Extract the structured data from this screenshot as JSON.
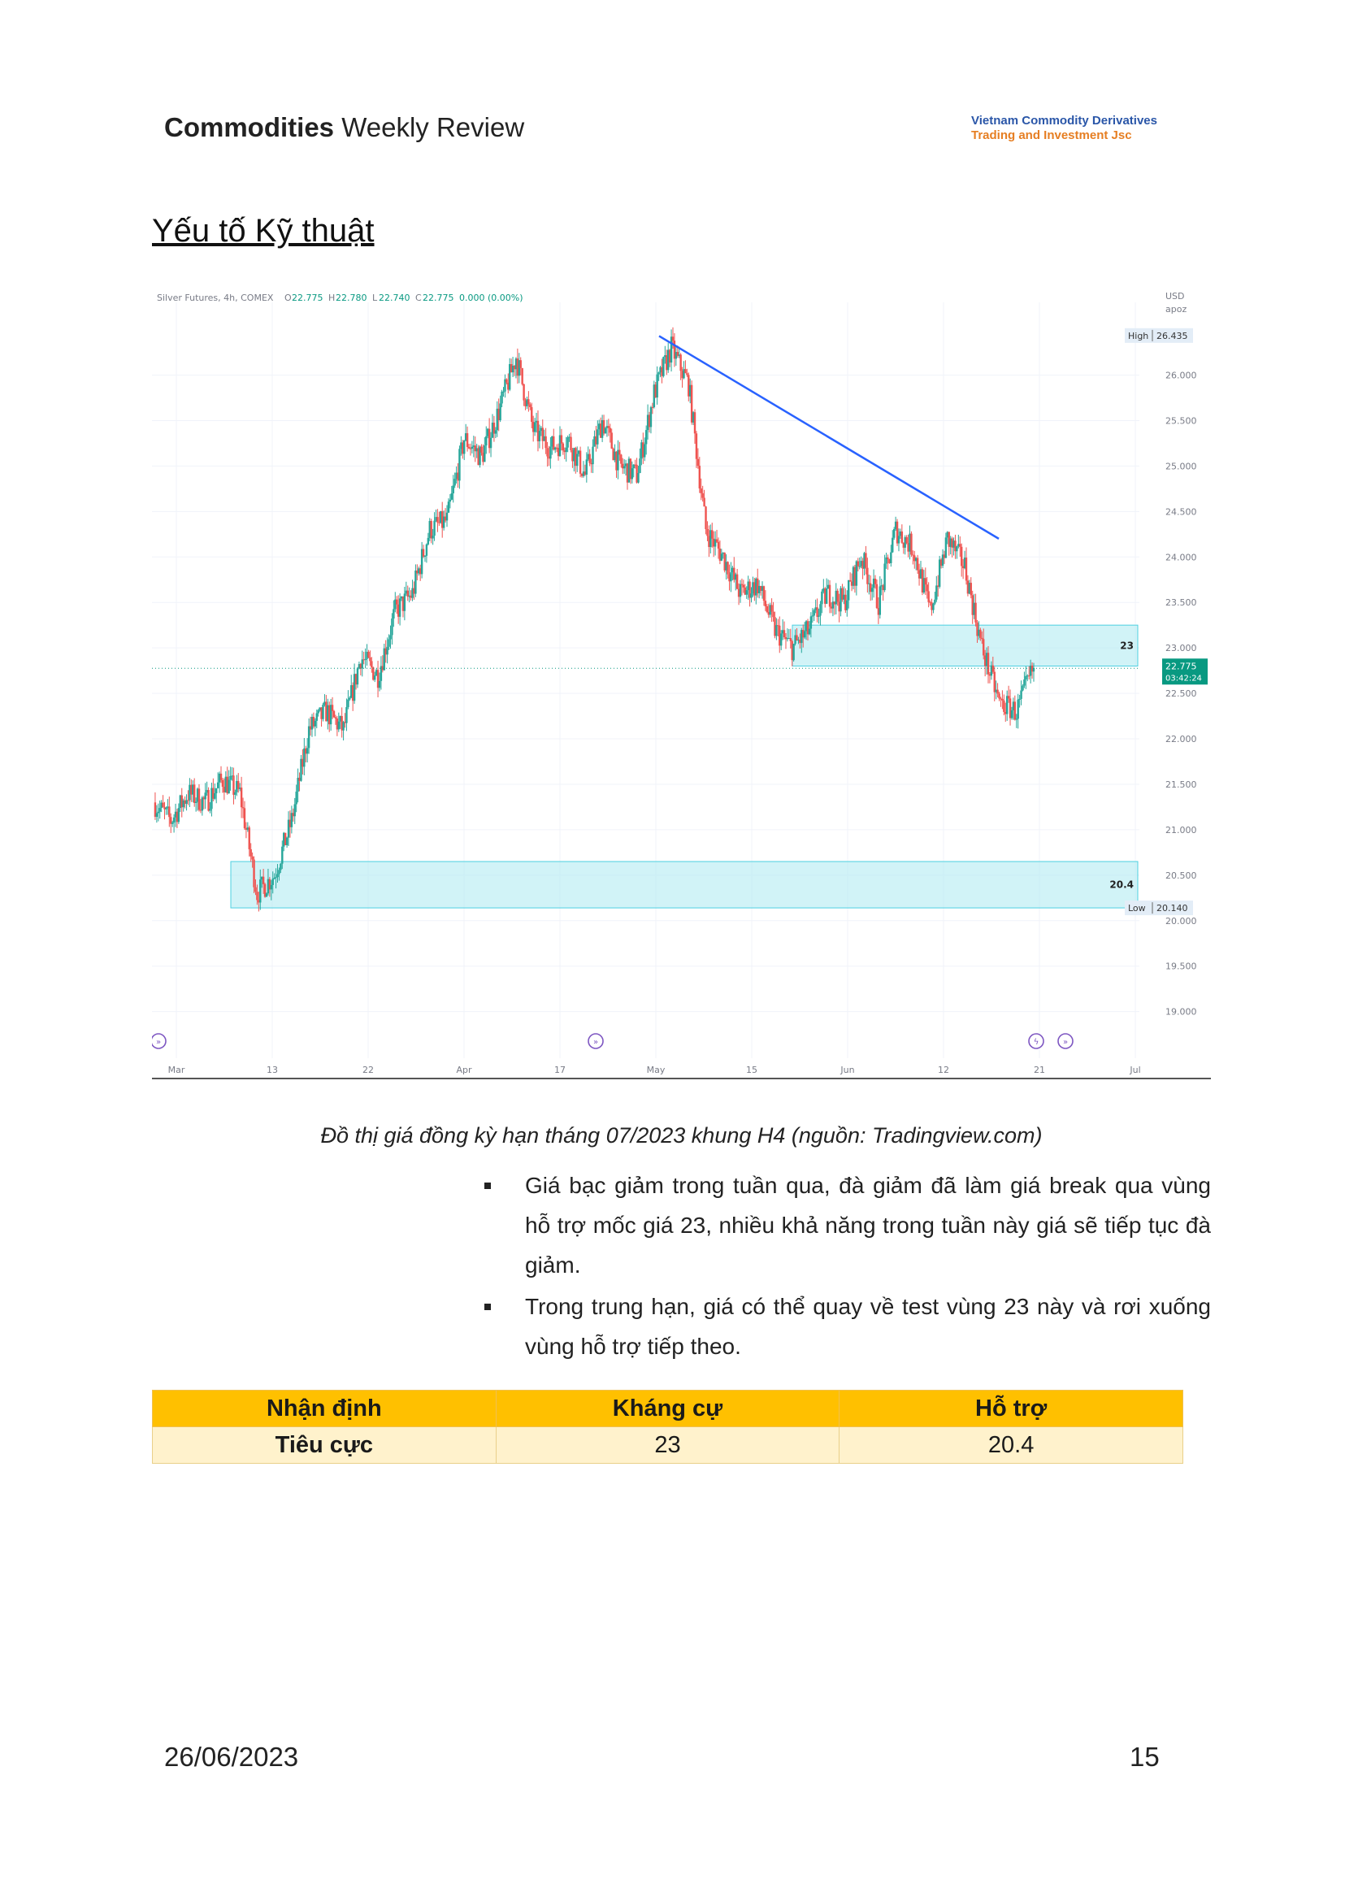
{
  "header": {
    "title_bold": "Commodities",
    "title_rest": " Weekly Review",
    "brand_line1": "Vietnam Commodity Derivatives",
    "brand_line2": "Trading and Investment Jsc"
  },
  "section_title": "Yếu tố Kỹ thuật",
  "chart_data": {
    "type": "candlestick",
    "symbol_info": "Silver Futures, 4h, COMEX",
    "ohlc_readout": {
      "O": "22.775",
      "H": "22.780",
      "L": "22.740",
      "C": "22.775",
      "change": "0.000 (0.00%)"
    },
    "currency": "USD",
    "account": "apoz",
    "y_ticks": [
      "26.000",
      "25.500",
      "25.000",
      "24.500",
      "24.000",
      "23.500",
      "23.000",
      "22.500",
      "22.000",
      "21.500",
      "21.000",
      "20.500",
      "20.000",
      "19.500",
      "19.000"
    ],
    "x_ticks": [
      "Mar",
      "13",
      "22",
      "Apr",
      "17",
      "May",
      "15",
      "Jun",
      "12",
      "21",
      "Jul"
    ],
    "ylim": [
      18.8,
      26.8
    ],
    "high_label": "High",
    "high_value": "26.435",
    "low_label": "Low",
    "low_value": "20.140",
    "last_price": "22.775",
    "countdown": "03:42:24",
    "resistance_zone": {
      "label": "23",
      "from": 22.8,
      "to": 23.25
    },
    "support_zone": {
      "label": "20.4",
      "from": 20.14,
      "to": 20.65
    },
    "trendline": {
      "from": {
        "date": "May 5",
        "price": 26.43
      },
      "to": {
        "date": "Jun 21",
        "price": 24.2
      }
    },
    "close_path": [
      21.3,
      21.1,
      21.4,
      21.3,
      21.55,
      21.4,
      20.3,
      20.5,
      21.1,
      22.1,
      22.3,
      22.1,
      22.9,
      22.7,
      23.4,
      23.6,
      24.3,
      24.4,
      25.3,
      25.1,
      25.6,
      26.2,
      25.4,
      25.2,
      25.3,
      24.9,
      25.5,
      25.0,
      24.9,
      25.8,
      26.3,
      25.9,
      24.3,
      24.0,
      23.6,
      23.7,
      23.2,
      23.0,
      23.2,
      23.6,
      23.5,
      24.0,
      23.5,
      24.3,
      24.1,
      23.4,
      24.2,
      23.9,
      23.0,
      22.4,
      22.3,
      22.78
    ]
  },
  "caption": "Đồ thị giá đồng kỳ hạn tháng 07/2023 khung H4 (nguồn: Tradingview.com)",
  "bullets": [
    "Giá bạc giảm trong tuần qua, đà giảm đã làm giá break qua vùng hỗ trợ mốc giá 23, nhiều khả năng trong tuần này giá sẽ tiếp tục đà giảm.",
    "Trong trung hạn, giá có thể quay về test vùng 23 này và rơi xuống vùng hỗ trợ tiếp theo."
  ],
  "table": {
    "headers": [
      "Nhận định",
      "Kháng cự",
      "Hỗ trợ"
    ],
    "row": [
      "Tiêu cực",
      "23",
      "20.4"
    ]
  },
  "footer": {
    "date": "26/06/2023",
    "page": "15"
  },
  "colors": {
    "up": "#26a69a",
    "down": "#ef5350",
    "trend": "#2962ff",
    "zone_fill": "#b2ebf2",
    "zone_stroke": "#4dd0e1",
    "price_tag": "#089981"
  }
}
